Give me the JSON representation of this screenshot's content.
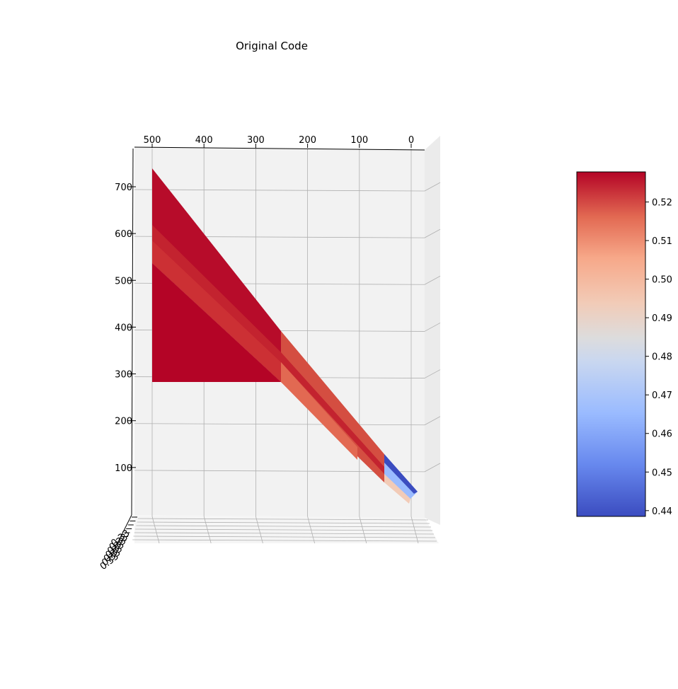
{
  "chart_data": {
    "type": "surface3d",
    "title": "Original Code",
    "colormap": "coolwarm",
    "axis_x": {
      "ticks": [
        500,
        400,
        300,
        200,
        100,
        0
      ]
    },
    "axis_z": {
      "ticks": [
        100,
        200,
        300,
        400,
        500,
        600,
        700
      ]
    },
    "axis_y": {
      "ticks": [
        "0.33",
        "0.33",
        "0.33",
        "0.33",
        "0.33",
        "0.33",
        "0.33"
      ]
    },
    "surface": {
      "x_range": [
        0,
        500
      ],
      "z_range": [
        30,
        730
      ],
      "color_value_range": [
        0.44,
        0.527
      ],
      "bands": [
        {
          "x_from": 0,
          "x_to": 50,
          "value_low": 0.44,
          "value_high": 0.49
        },
        {
          "x_from": 50,
          "x_to": 250,
          "value_low": 0.505,
          "value_high": 0.52
        },
        {
          "x_from": 250,
          "x_to": 500,
          "value_low": 0.52,
          "value_high": 0.527
        }
      ]
    },
    "colorbar": {
      "ticks": [
        "0.52",
        "0.51",
        "0.50",
        "0.49",
        "0.48",
        "0.47",
        "0.46",
        "0.45",
        "0.44"
      ],
      "tick_values": [
        0.52,
        0.51,
        0.5,
        0.49,
        0.48,
        0.47,
        0.46,
        0.45,
        0.44
      ],
      "range": [
        0.4385,
        0.5278
      ]
    }
  }
}
